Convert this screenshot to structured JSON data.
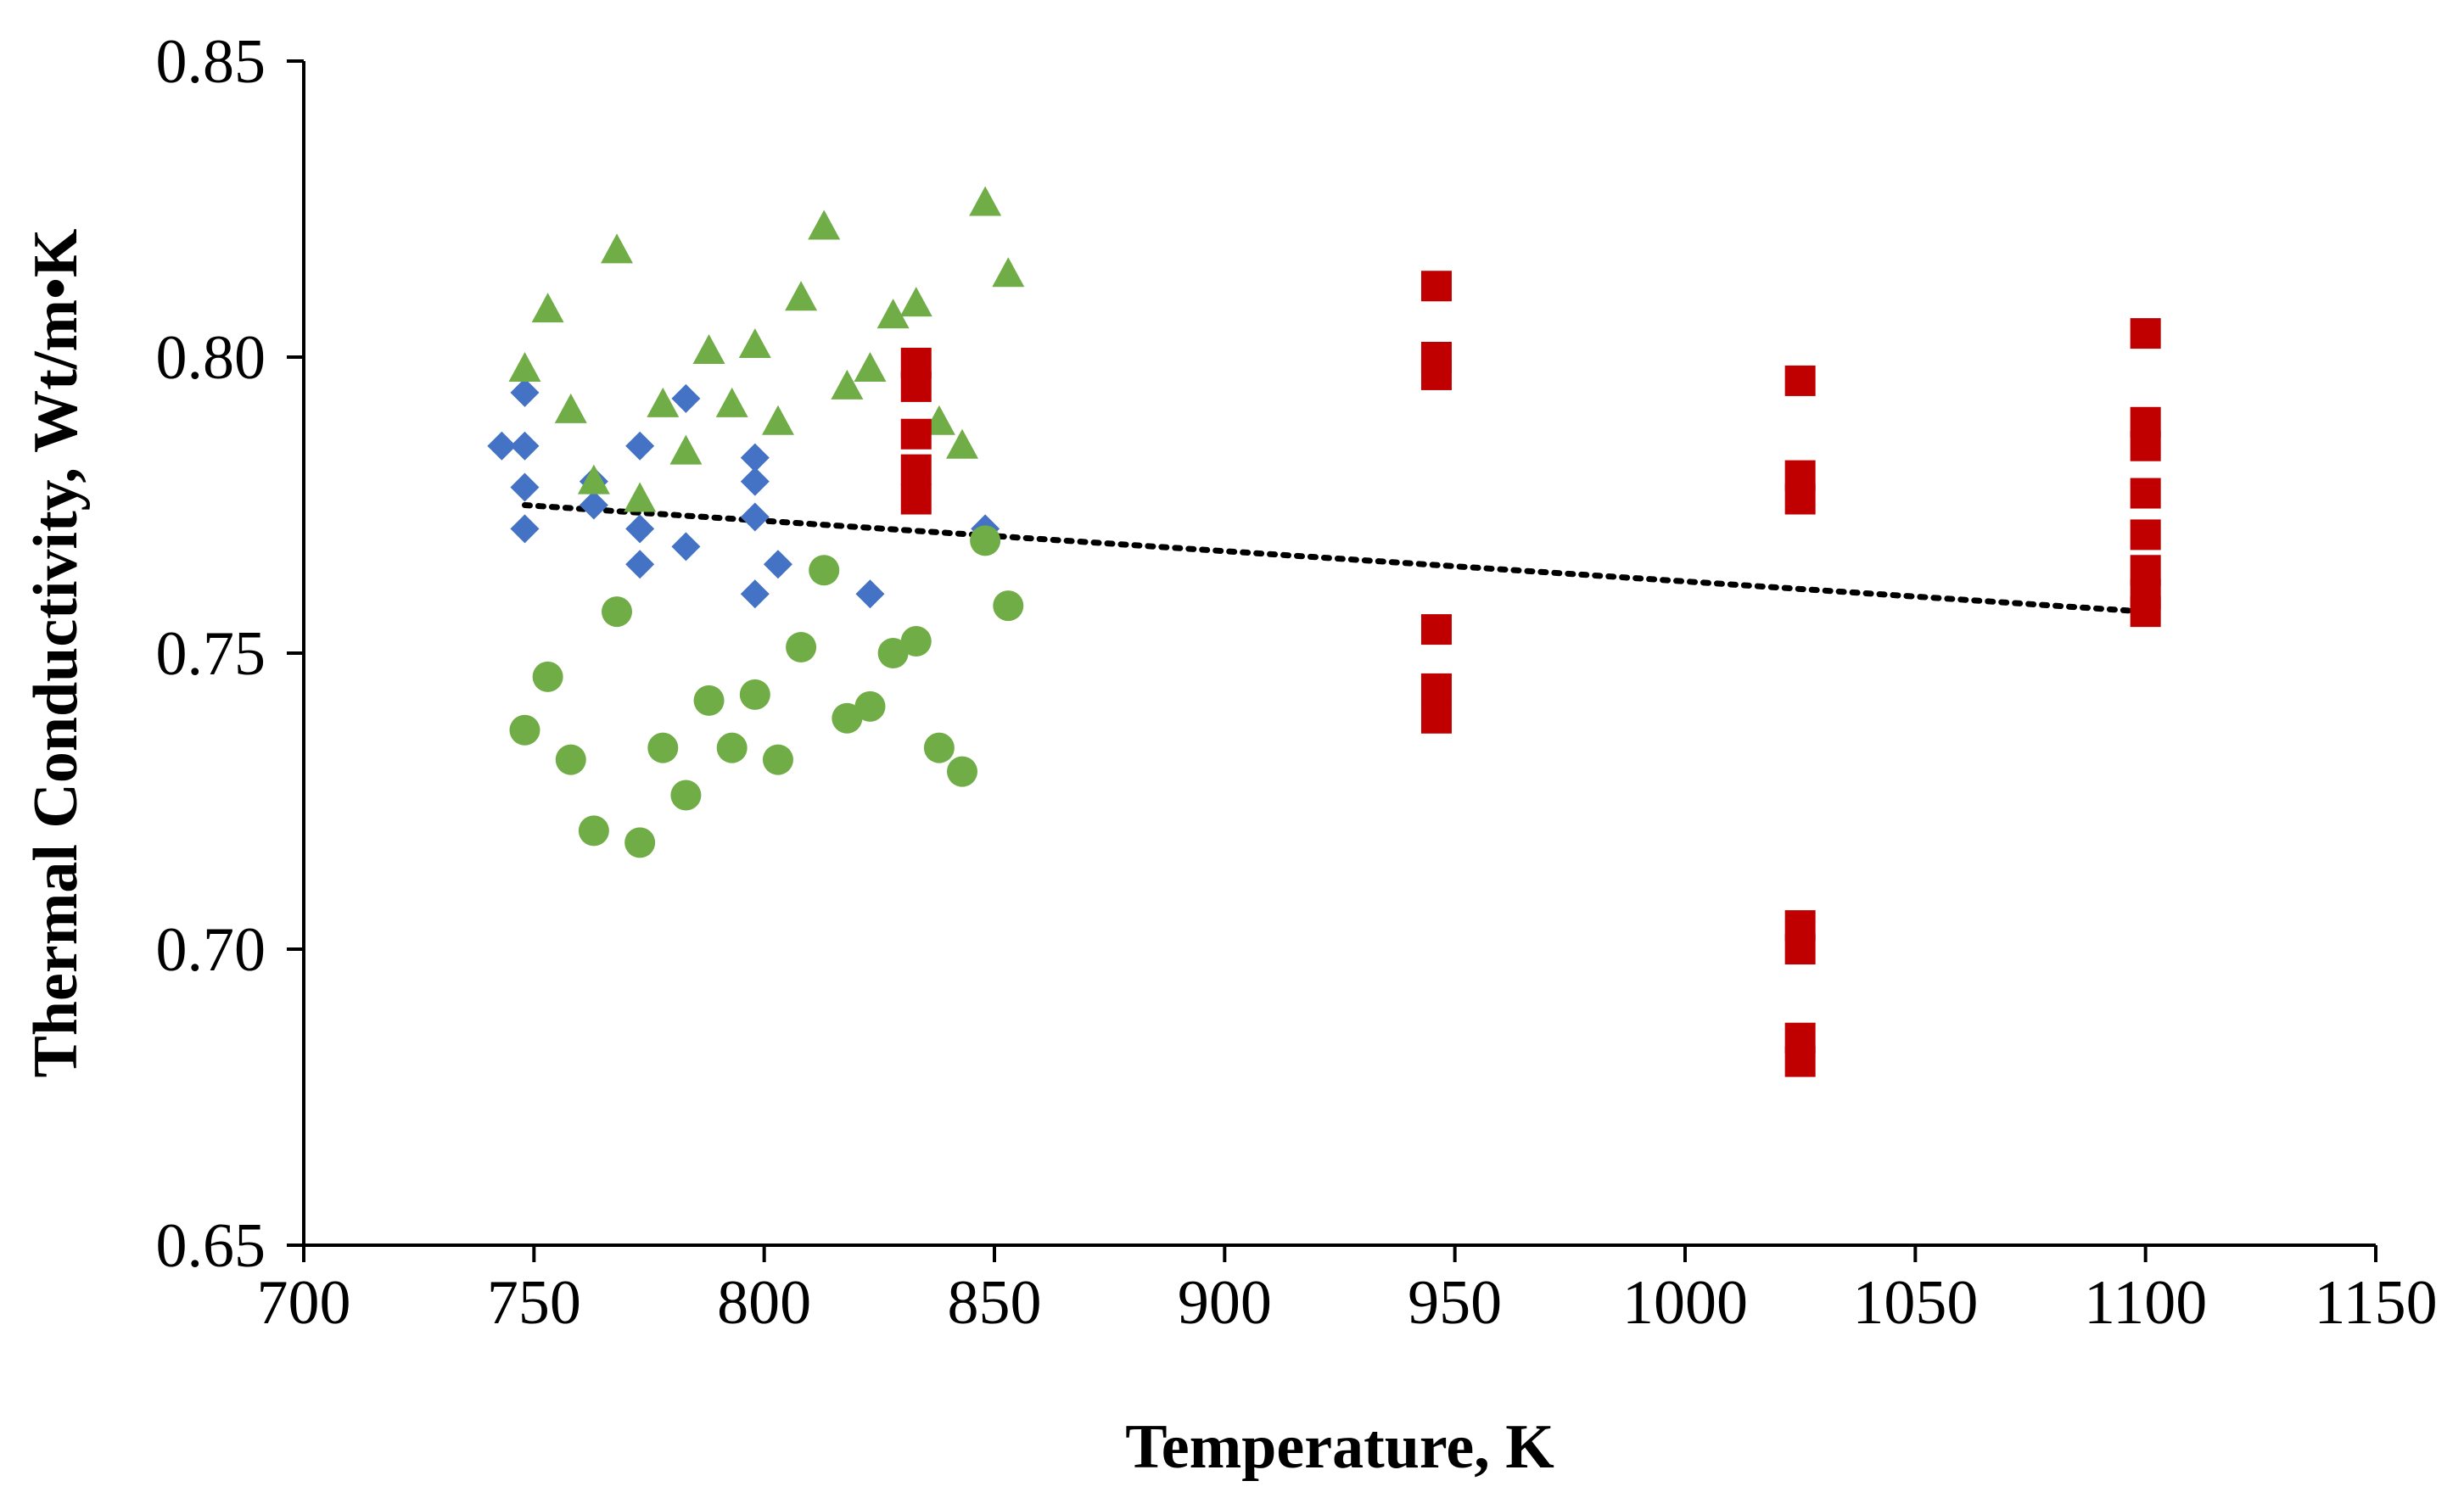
{
  "chart_data": {
    "type": "scatter",
    "title": "",
    "xlabel": "Temperature, K",
    "ylabel": "Thermal Conductivity, Wt/m•K",
    "xlim": [
      700,
      1150
    ],
    "ylim": [
      0.65,
      0.85
    ],
    "x_ticks": [
      "700",
      "750",
      "800",
      "850",
      "900",
      "950",
      "1000",
      "1050",
      "1100",
      "1150"
    ],
    "y_ticks": [
      "0.65",
      "0.70",
      "0.75",
      "0.80",
      "0.85"
    ],
    "grid": false,
    "legend": "none",
    "series": [
      {
        "name": "diamonds",
        "marker": "diamond",
        "color": "#4472C4",
        "points": [
          [
            743,
            0.785
          ],
          [
            748,
            0.794
          ],
          [
            748,
            0.785
          ],
          [
            748,
            0.778
          ],
          [
            748,
            0.771
          ],
          [
            763,
            0.779
          ],
          [
            763,
            0.775
          ],
          [
            773,
            0.785
          ],
          [
            773,
            0.771
          ],
          [
            773,
            0.765
          ],
          [
            783,
            0.793
          ],
          [
            783,
            0.768
          ],
          [
            798,
            0.783
          ],
          [
            798,
            0.779
          ],
          [
            798,
            0.773
          ],
          [
            798,
            0.76
          ],
          [
            803,
            0.765
          ],
          [
            823,
            0.76
          ],
          [
            848,
            0.771
          ]
        ]
      },
      {
        "name": "triangles",
        "marker": "triangle",
        "color": "#70AD47",
        "points": [
          [
            748,
            0.798
          ],
          [
            753,
            0.808
          ],
          [
            758,
            0.791
          ],
          [
            763,
            0.779
          ],
          [
            768,
            0.818
          ],
          [
            773,
            0.776
          ],
          [
            778,
            0.792
          ],
          [
            783,
            0.784
          ],
          [
            788,
            0.801
          ],
          [
            793,
            0.792
          ],
          [
            798,
            0.802
          ],
          [
            803,
            0.789
          ],
          [
            808,
            0.81
          ],
          [
            813,
            0.822
          ],
          [
            818,
            0.795
          ],
          [
            823,
            0.798
          ],
          [
            828,
            0.807
          ],
          [
            833,
            0.809
          ],
          [
            838,
            0.789
          ],
          [
            843,
            0.785
          ],
          [
            848,
            0.826
          ],
          [
            853,
            0.814
          ]
        ]
      },
      {
        "name": "circles",
        "marker": "circle",
        "color": "#70AD47",
        "points": [
          [
            748,
            0.737
          ],
          [
            753,
            0.746
          ],
          [
            758,
            0.732
          ],
          [
            763,
            0.72
          ],
          [
            768,
            0.757
          ],
          [
            773,
            0.718
          ],
          [
            778,
            0.734
          ],
          [
            783,
            0.726
          ],
          [
            788,
            0.742
          ],
          [
            793,
            0.734
          ],
          [
            798,
            0.743
          ],
          [
            803,
            0.732
          ],
          [
            808,
            0.751
          ],
          [
            813,
            0.764
          ],
          [
            818,
            0.739
          ],
          [
            823,
            0.741
          ],
          [
            828,
            0.75
          ],
          [
            833,
            0.752
          ],
          [
            838,
            0.734
          ],
          [
            843,
            0.73
          ],
          [
            848,
            0.769
          ],
          [
            853,
            0.758
          ]
        ]
      },
      {
        "name": "squares",
        "marker": "square",
        "color": "#C00000",
        "points": [
          [
            833,
            0.799
          ],
          [
            833,
            0.795
          ],
          [
            833,
            0.787
          ],
          [
            833,
            0.781
          ],
          [
            833,
            0.776
          ],
          [
            946,
            0.812
          ],
          [
            946,
            0.8
          ],
          [
            946,
            0.797
          ],
          [
            946,
            0.754
          ],
          [
            946,
            0.744
          ],
          [
            946,
            0.739
          ],
          [
            1025,
            0.796
          ],
          [
            1025,
            0.78
          ],
          [
            1025,
            0.776
          ],
          [
            1025,
            0.704
          ],
          [
            1025,
            0.7
          ],
          [
            1025,
            0.685
          ],
          [
            1025,
            0.681
          ],
          [
            1100,
            0.804
          ],
          [
            1100,
            0.789
          ],
          [
            1100,
            0.785
          ],
          [
            1100,
            0.777
          ],
          [
            1100,
            0.77
          ],
          [
            1100,
            0.764
          ],
          [
            1100,
            0.76
          ],
          [
            1100,
            0.757
          ]
        ]
      }
    ],
    "trendline": {
      "type": "linear",
      "style": "dotted",
      "color": "#000000",
      "x": [
        748,
        1100
      ],
      "y": [
        0.775,
        0.757
      ]
    }
  }
}
